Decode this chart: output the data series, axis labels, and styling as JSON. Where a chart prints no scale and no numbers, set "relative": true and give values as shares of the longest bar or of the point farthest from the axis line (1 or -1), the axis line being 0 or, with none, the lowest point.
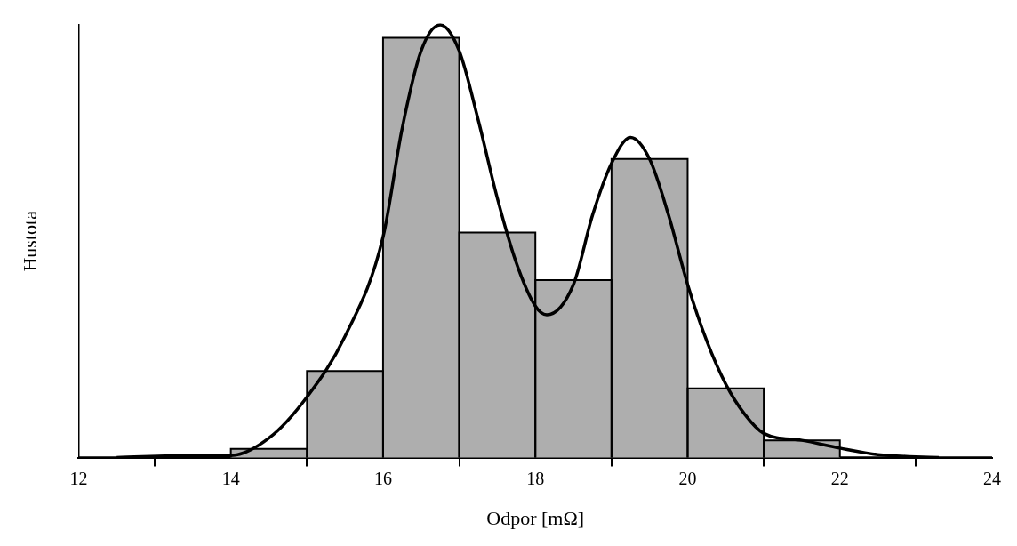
{
  "chart_data": {
    "type": "histogram",
    "xlabel": "Odpor [mΩ]",
    "ylabel": "Hustota",
    "relative": true,
    "bins": [
      14,
      15,
      16,
      17,
      18,
      19,
      20,
      21,
      22
    ],
    "values": [
      0.02,
      0.2,
      0.97,
      0.52,
      0.41,
      0.69,
      0.16,
      0.04
    ],
    "color": "#aeaeae",
    "series": [
      {
        "type": "line",
        "color": "#000000",
        "x": [
          12.5,
          13.5,
          14,
          14.5,
          15,
          15.5,
          16,
          16.25,
          16.5,
          16.75,
          17,
          17.25,
          17.5,
          17.75,
          18,
          18.15,
          18.5,
          18.75,
          19,
          19.25,
          19.5,
          19.75,
          20,
          20.25,
          20.5,
          20.75,
          21,
          21.5,
          22,
          22.5,
          23,
          23.3
        ],
        "values": [
          0,
          0.005,
          0.005,
          0.045,
          0.14,
          0.28,
          0.51,
          0.76,
          0.94,
          1,
          0.94,
          0.78,
          0.6,
          0.45,
          0.35,
          0.33,
          0.4,
          0.56,
          0.68,
          0.74,
          0.69,
          0.56,
          0.4,
          0.27,
          0.17,
          0.1,
          0.056,
          0.04,
          0.022,
          0.007,
          0.002,
          0
        ]
      }
    ],
    "xlim": [
      12,
      24
    ],
    "xticks": [
      12,
      14,
      16,
      18,
      20,
      22,
      24
    ],
    "ref_lines": [
      {
        "axis": "y",
        "value": 0,
        "color": "#000000"
      }
    ],
    "grid": false,
    "legend": false,
    "marker": "none",
    "line_style": "solid"
  }
}
